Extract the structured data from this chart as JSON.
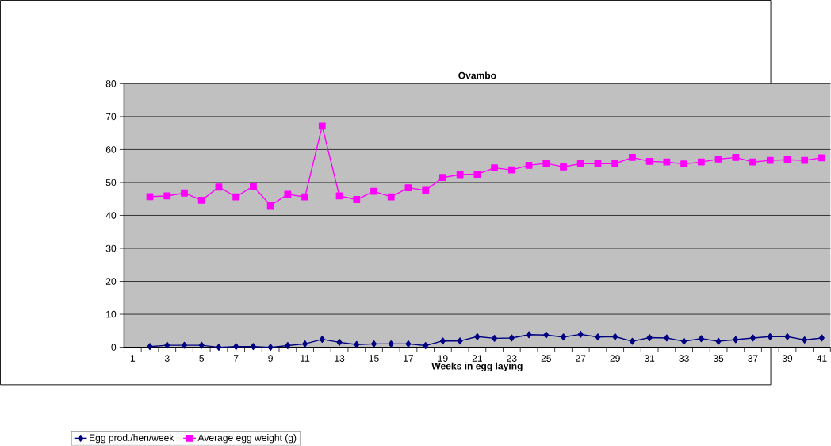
{
  "chart_data": {
    "type": "line",
    "title": "Ovambo",
    "xlabel": "Weeks in egg laying",
    "categories": [
      "1",
      null,
      "3",
      null,
      "5",
      null,
      "7",
      null,
      "9",
      null,
      "11",
      null,
      "13",
      null,
      "15",
      null,
      "17",
      null,
      "19",
      null,
      "21",
      null,
      "23",
      null,
      "25",
      null,
      "27",
      null,
      "29",
      null,
      "31",
      null,
      "33",
      null,
      "35",
      null,
      "37",
      null,
      "39",
      null,
      "41"
    ],
    "series": [
      {
        "name": "Egg prod./hen/week",
        "color": "#000080",
        "marker": "diamond",
        "values": [
          null,
          0.2,
          0.6,
          0.6,
          0.6,
          0,
          0.2,
          0.2,
          0,
          0.5,
          1.0,
          2.4,
          1.5,
          0.8,
          1.0,
          1.0,
          1.0,
          0.5,
          1.9,
          1.9,
          3.2,
          2.7,
          2.8,
          3.8,
          3.7,
          3.1,
          3.9,
          3.1,
          3.2,
          1.8,
          2.9,
          2.8,
          1.8,
          2.6,
          1.8,
          2.3,
          2.8,
          3.2,
          3.2,
          2.2,
          2.8
        ]
      },
      {
        "name": "Average egg weight (g)",
        "color": "#ff00ff",
        "marker": "square",
        "values": [
          null,
          45.7,
          45.9,
          46.8,
          44.6,
          48.6,
          45.6,
          48.9,
          43.0,
          46.4,
          45.6,
          67.1,
          45.9,
          44.8,
          47.3,
          45.6,
          48.4,
          47.6,
          51.5,
          52.4,
          52.5,
          54.4,
          53.8,
          55.2,
          55.8,
          54.7,
          55.7,
          55.7,
          55.7,
          57.6,
          56.4,
          56.2,
          55.6,
          56.2,
          57.1,
          57.6,
          56.2,
          56.7,
          56.9,
          56.7,
          57.5
        ]
      }
    ],
    "ylim": [
      0,
      80
    ],
    "yticks": [
      0,
      10,
      20,
      30,
      40,
      50,
      60,
      70,
      80
    ],
    "grid": "y",
    "legend": "bottom left"
  }
}
